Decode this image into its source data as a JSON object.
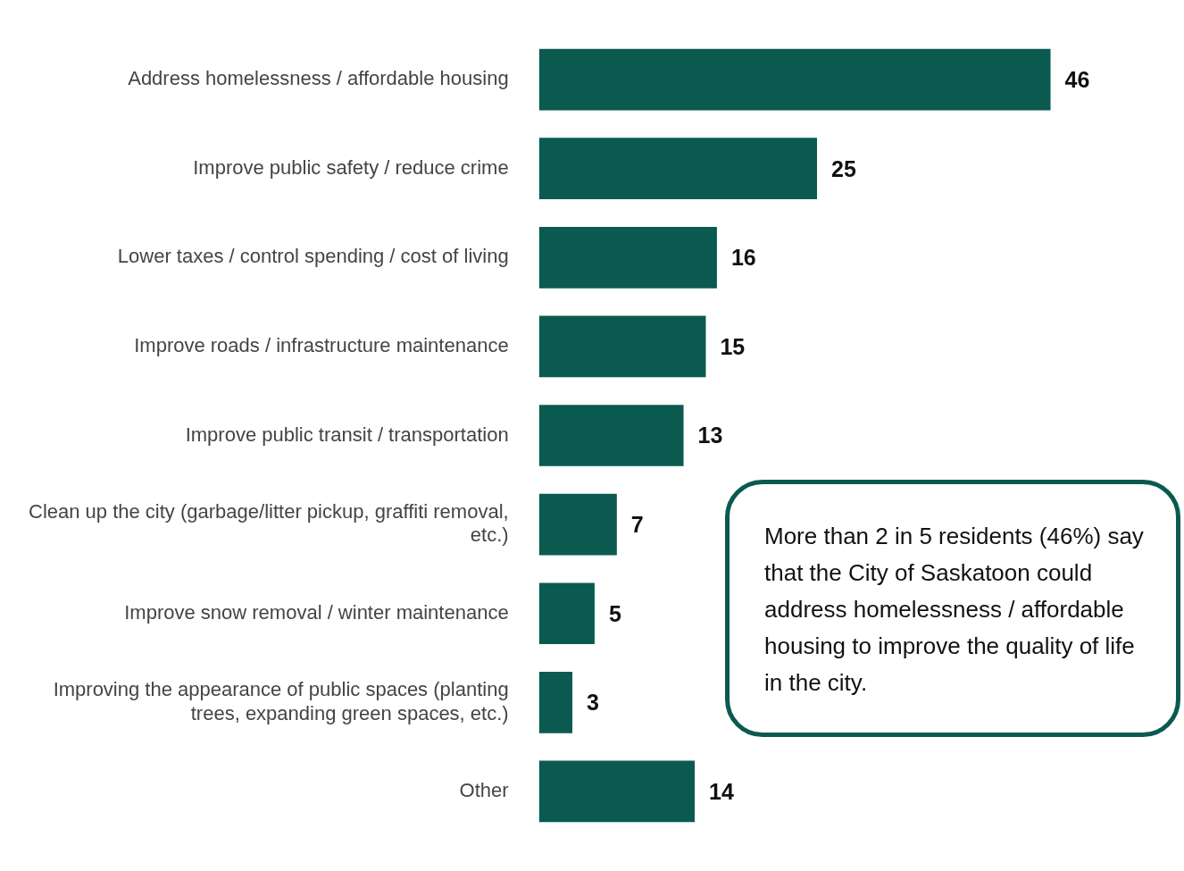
{
  "chart_data": {
    "type": "bar",
    "orientation": "horizontal",
    "categories": [
      "Address homelessness / affordable housing",
      "Improve public safety / reduce crime",
      "Lower taxes / control spending / cost of living",
      "Improve roads / infrastructure maintenance",
      "Improve public transit / transportation",
      "Clean up the city (garbage/litter pickup, graffiti removal, etc.)",
      "Improve snow removal / winter maintenance",
      "Improving the appearance of public spaces (planting trees, expanding green spaces, etc.)",
      "Other"
    ],
    "values": [
      46,
      25,
      16,
      15,
      13,
      7,
      5,
      3,
      14
    ],
    "color": "#0a5a50",
    "xlim": [
      0,
      58
    ],
    "tick_labels": "y",
    "data_labels": true,
    "annotations": [
      "More than 2 in 5 residents (46%) say that the City of Saskatoon could address homelessness / affordable housing to improve the quality of life in the city."
    ]
  }
}
